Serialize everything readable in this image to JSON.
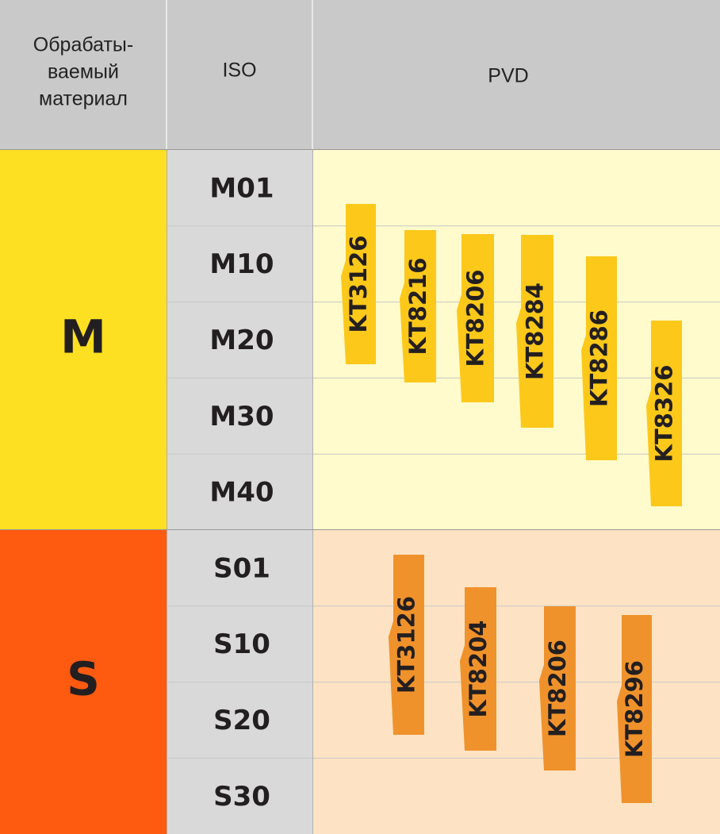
{
  "header": {
    "material": [
      "Обрабаты-",
      "ваемый",
      "материал"
    ],
    "iso": "ISO",
    "pvd": "PVD"
  },
  "groups": [
    {
      "name": "M",
      "rows": [
        "M01",
        "M10",
        "M20",
        "M30",
        "M40"
      ],
      "grades": [
        "KT3126",
        "KT8216",
        "KT8206",
        "KT8284",
        "KT8286",
        "KT8326"
      ]
    },
    {
      "name": "S",
      "rows": [
        "S01",
        "S10",
        "S20",
        "S30"
      ],
      "grades": [
        "KT3126",
        "KT8204",
        "KT8206",
        "KT8296"
      ]
    }
  ]
}
